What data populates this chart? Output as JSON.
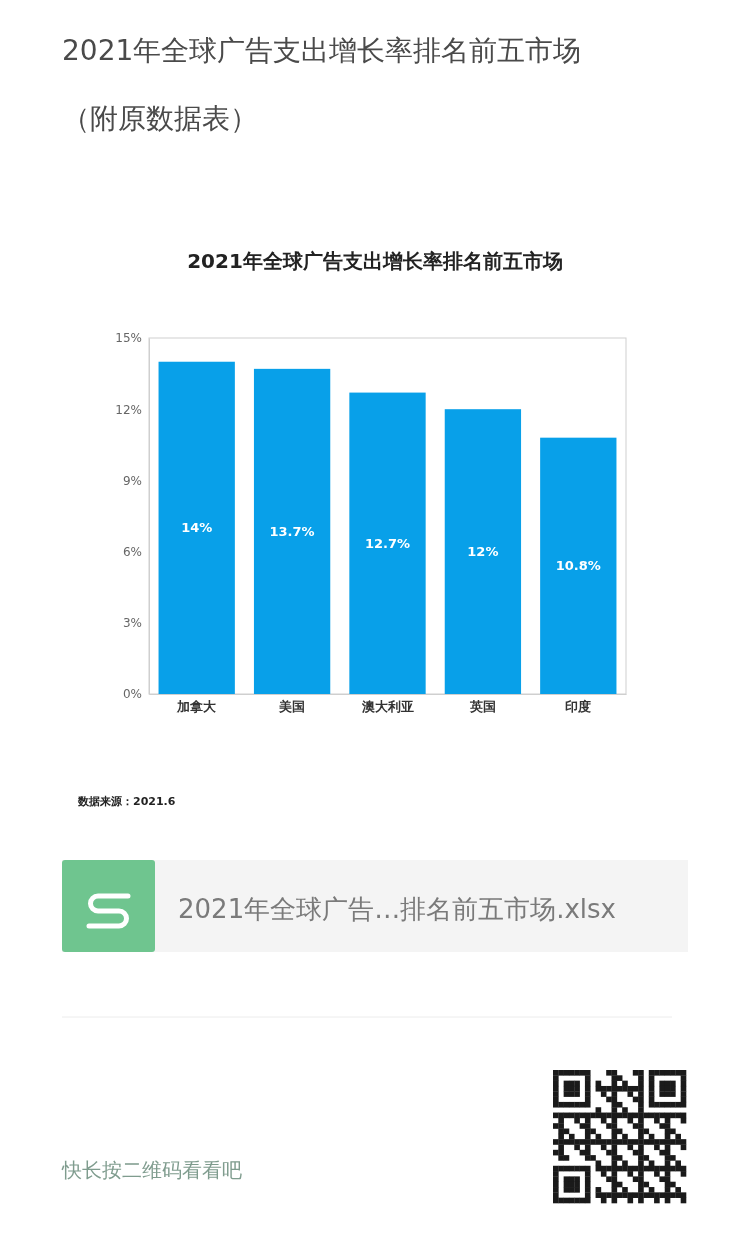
{
  "chart_data": {
    "type": "bar",
    "title": "2021年全球广告支出增长率排名前五市场",
    "subtitle": "（附原数据表）",
    "annotations": [
      "2021年全球广告支出增长率排名前五市场",
      "数据来源：2021.6",
      "2021年全球广告…排名前五市场.xlsx",
      "快长按二维码看看吧"
    ],
    "categories": [
      "加拿大",
      "美国",
      "澳大利亚",
      "英国",
      "印度"
    ],
    "values": [
      14,
      13.7,
      12.7,
      12,
      10.8
    ],
    "value_labels": [
      "14%",
      "13.7%",
      "12.7%",
      "12%",
      "10.8%"
    ],
    "color": "#08a0e9",
    "ylim": [
      0,
      15
    ],
    "yticks": [
      {
        "value": 0,
        "label": "0%"
      },
      {
        "value": 3,
        "label": "3%"
      },
      {
        "value": 6,
        "label": "6%"
      },
      {
        "value": 9,
        "label": "9%"
      },
      {
        "value": 12,
        "label": "12%"
      },
      {
        "value": 15,
        "label": "15%"
      }
    ]
  }
}
